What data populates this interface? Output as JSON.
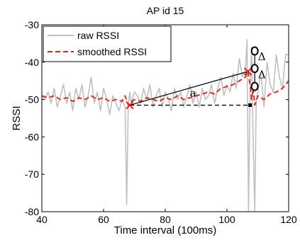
{
  "chart_data": {
    "type": "line",
    "title": "AP id 15",
    "xlabel": "Time interval (100ms)",
    "ylabel": "RSSI",
    "xlim": [
      40,
      120
    ],
    "ylim": [
      -80,
      -30
    ],
    "xticks": [
      40,
      60,
      80,
      100,
      120
    ],
    "yticks": [
      -30,
      -40,
      -50,
      -60,
      -70,
      -80
    ],
    "legend": "top-left",
    "grid": false,
    "series": [
      {
        "name": "raw RSSI",
        "color": "#c0c0c0",
        "style": "solid",
        "x": [
          40,
          41,
          42,
          43,
          44,
          45,
          46,
          47,
          48,
          49,
          50,
          51,
          52,
          53,
          54,
          55,
          56,
          57,
          58,
          59,
          60,
          61,
          62,
          63,
          64,
          65,
          66,
          67,
          67.5,
          68,
          68.5,
          69,
          70,
          71,
          72,
          73,
          74,
          75,
          76,
          77,
          78,
          79,
          80,
          81,
          82,
          83,
          84,
          85,
          86,
          87,
          88,
          89,
          90,
          91,
          92,
          93,
          94,
          95,
          96,
          97,
          98,
          99,
          100,
          101,
          102,
          103,
          104,
          105,
          106,
          106.5,
          107,
          107.5,
          108,
          108.5,
          109,
          109.5,
          110,
          111,
          112,
          113,
          114,
          115,
          116,
          117,
          118,
          119,
          120
        ],
        "y": [
          -49,
          -50,
          -48,
          -51,
          -47,
          -52,
          -49,
          -46,
          -51,
          -48,
          -53,
          -47,
          -50,
          -46,
          -52,
          -49,
          -44,
          -51,
          -48,
          -53,
          -47,
          -50,
          -54,
          -49,
          -51,
          -53,
          -50,
          -52,
          -78,
          -52,
          -48,
          -51,
          -48,
          -49,
          -51,
          -47,
          -50,
          -46,
          -52,
          -49,
          -47,
          -52,
          -48,
          -50,
          -53,
          -47,
          -50,
          -48,
          -52,
          -49,
          -46,
          -51,
          -48,
          -52,
          -47,
          -50,
          -49,
          -46,
          -51,
          -47,
          -44,
          -49,
          -46,
          -48,
          -43,
          -47,
          -39,
          -44,
          -42,
          -34,
          -80,
          -48,
          -36,
          -62,
          -80,
          -50,
          -48,
          -43,
          -52,
          -40,
          -46,
          -48,
          -38,
          -44,
          -47,
          -38,
          -38
        ]
      },
      {
        "name": "smoothed RSSI",
        "color": "#e0201b",
        "style": "dashed",
        "x": [
          40,
          42,
          44,
          46,
          48,
          50,
          52,
          54,
          56,
          58,
          60,
          62,
          64,
          66,
          67,
          68,
          69,
          70,
          72,
          74,
          76,
          78,
          80,
          82,
          84,
          86,
          88,
          90,
          92,
          94,
          96,
          98,
          100,
          102,
          104,
          106,
          106.8,
          107.5,
          108,
          108.5,
          109,
          110,
          112,
          114,
          116,
          118,
          120
        ],
        "y": [
          -49,
          -49.5,
          -49,
          -50,
          -49.5,
          -50.5,
          -49.5,
          -50,
          -49,
          -50,
          -49.5,
          -50.5,
          -50,
          -50.5,
          -49,
          -51.5,
          -50.5,
          -50,
          -50.5,
          -49.5,
          -50,
          -50.5,
          -49.5,
          -50,
          -49,
          -50,
          -49.5,
          -49,
          -48.5,
          -48,
          -48.5,
          -47,
          -46.5,
          -46,
          -45,
          -44,
          -42.5,
          -46,
          -50,
          -47,
          -51.5,
          -49,
          -50,
          -48.5,
          -48,
          -47,
          -45
        ]
      }
    ],
    "annotations": {
      "marker_points": [
        {
          "x": 68.5,
          "y": -51.5
        },
        {
          "x": 106.8,
          "y": -42.5
        }
      ],
      "secant_line": {
        "from": [
          68.5,
          -51.5
        ],
        "to": [
          106.8,
          -42.5
        ]
      },
      "horizontal_dashed": {
        "from": [
          68.5,
          -51.5
        ],
        "to": [
          107.5,
          -51.5
        ]
      },
      "end_square": {
        "x": 107.5,
        "y": -51.5
      },
      "angle_label": {
        "text": "a",
        "x": 89,
        "y": -49.2
      },
      "circles": [
        {
          "x": 109,
          "y": -37
        },
        {
          "x": 109,
          "y": -41.7
        },
        {
          "x": 109,
          "y": -46.5
        }
      ],
      "vertical_line": {
        "x": 109,
        "from": -37,
        "to": -46.5
      },
      "delta_labels": [
        {
          "text": "Δ",
          "x": 111.3,
          "y": -39.5
        },
        {
          "text": "Δ",
          "x": 111.3,
          "y": -44.3
        }
      ]
    }
  }
}
